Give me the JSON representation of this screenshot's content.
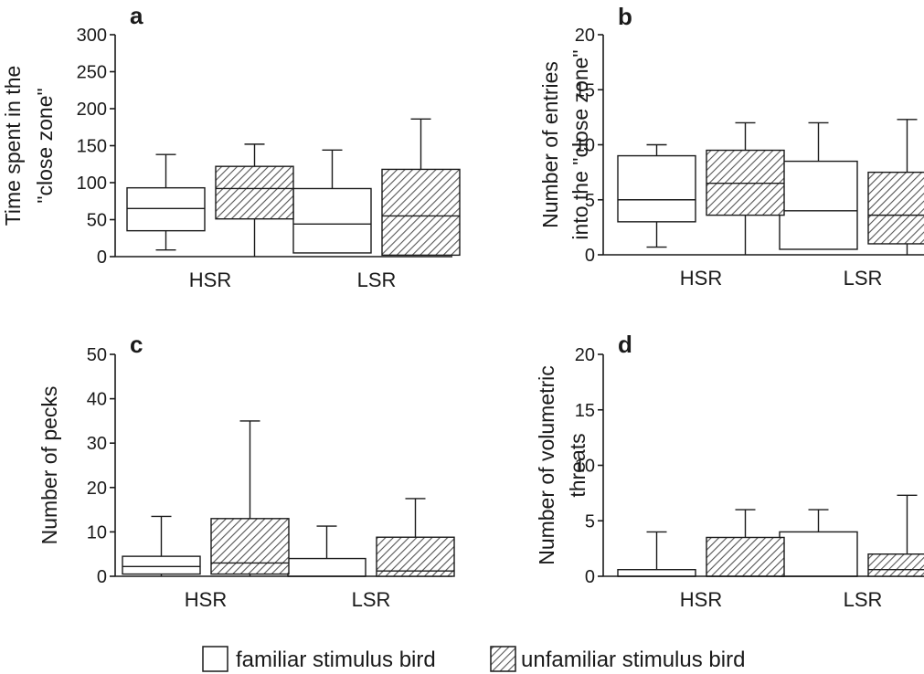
{
  "chart_data": [
    {
      "panel_label": "a",
      "type": "boxplot",
      "ylabel_lines": [
        "Time spent in the",
        "\"close zone\""
      ],
      "ylim": [
        0,
        300
      ],
      "yticks": [
        0,
        50,
        100,
        150,
        200,
        250,
        300
      ],
      "categories": [
        "HSR",
        "LSR"
      ],
      "series": [
        {
          "name": "familiar stimulus bird",
          "boxes": [
            {
              "min": 9,
              "q1": 35,
              "median": 65,
              "q3": 93,
              "max": 138
            },
            {
              "min": 5,
              "q1": 5,
              "median": 44,
              "q3": 92,
              "max": 144
            }
          ]
        },
        {
          "name": "unfamiliar stimulus bird",
          "boxes": [
            {
              "min": 0,
              "q1": 51,
              "median": 92,
              "q3": 122,
              "max": 152
            },
            {
              "min": 2,
              "q1": 2,
              "median": 55,
              "q3": 118,
              "max": 186
            }
          ]
        }
      ]
    },
    {
      "panel_label": "b",
      "type": "boxplot",
      "ylabel_lines": [
        "Number of entries",
        "into the \"close zone\""
      ],
      "ylim": [
        0,
        20
      ],
      "yticks": [
        0,
        5,
        10,
        15,
        20
      ],
      "categories": [
        "HSR",
        "LSR"
      ],
      "series": [
        {
          "name": "familiar stimulus bird",
          "boxes": [
            {
              "min": 0.7,
              "q1": 3,
              "median": 5,
              "q3": 9,
              "max": 10
            },
            {
              "min": 0.5,
              "q1": 0.5,
              "median": 4,
              "q3": 8.5,
              "max": 12
            }
          ]
        },
        {
          "name": "unfamiliar stimulus bird",
          "boxes": [
            {
              "min": 0,
              "q1": 3.6,
              "median": 6.5,
              "q3": 9.5,
              "max": 12
            },
            {
              "min": 0,
              "q1": 1,
              "median": 3.6,
              "q3": 7.5,
              "max": 12.3
            }
          ]
        }
      ]
    },
    {
      "panel_label": "c",
      "type": "boxplot",
      "ylabel_lines": [
        "Number of pecks"
      ],
      "ylim": [
        0,
        50
      ],
      "yticks": [
        0,
        10,
        20,
        30,
        40,
        50
      ],
      "categories": [
        "HSR",
        "LSR"
      ],
      "series": [
        {
          "name": "familiar stimulus bird",
          "boxes": [
            {
              "min": 0,
              "q1": 0.5,
              "median": 2.2,
              "q3": 4.5,
              "max": 13.5
            },
            {
              "min": 0,
              "q1": 0,
              "median": 0,
              "q3": 4,
              "max": 11.3
            }
          ]
        },
        {
          "name": "unfamiliar stimulus bird",
          "boxes": [
            {
              "min": 0,
              "q1": 0.5,
              "median": 3,
              "q3": 13,
              "max": 35
            },
            {
              "min": 0,
              "q1": 0,
              "median": 1.2,
              "q3": 8.8,
              "max": 17.5
            }
          ]
        }
      ]
    },
    {
      "panel_label": "d",
      "type": "boxplot",
      "ylabel_lines": [
        "Number of volumetric",
        "threats"
      ],
      "ylim": [
        0,
        20
      ],
      "yticks": [
        0,
        5,
        10,
        15,
        20
      ],
      "categories": [
        "HSR",
        "LSR"
      ],
      "series": [
        {
          "name": "familiar stimulus bird",
          "boxes": [
            {
              "min": 0,
              "q1": 0,
              "median": 0,
              "q3": 0.6,
              "max": 4
            },
            {
              "min": 0,
              "q1": 0,
              "median": 0,
              "q3": 4,
              "max": 6
            }
          ]
        },
        {
          "name": "unfamiliar stimulus bird",
          "boxes": [
            {
              "min": 0,
              "q1": 0,
              "median": 0,
              "q3": 3.5,
              "max": 6
            },
            {
              "min": 0,
              "q1": 0,
              "median": 0.6,
              "q3": 2,
              "max": 7.3
            }
          ]
        }
      ]
    }
  ],
  "legend": {
    "items": [
      {
        "label": "familiar stimulus bird",
        "fill": "plain"
      },
      {
        "label": "unfamiliar stimulus bird",
        "fill": "hatched"
      }
    ]
  },
  "colors": {
    "ink": "#1a1a1a",
    "background": "#ffffff",
    "hatch": "#555555"
  }
}
